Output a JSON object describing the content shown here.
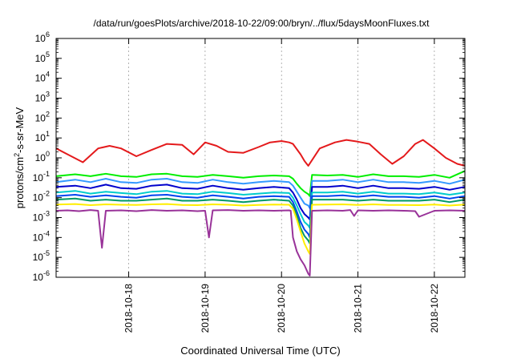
{
  "chart_data": {
    "type": "line",
    "title": "/data/run/goesPlots/archive/2018-10-22/09:00/bryn/../flux/5daysMoonFluxes.txt",
    "xlabel": "Coordinated Universal Time (UTC)",
    "ylabel": "protons/cm²-s-sr-MeV",
    "ylabel_parts": {
      "pre": "protons/cm",
      "sup": "2",
      "post": "-s-sr-MeV"
    },
    "yscale": "log",
    "ylim_exp": [
      -6,
      6
    ],
    "xlim_days": [
      17.05,
      22.4
    ],
    "grid": true,
    "legend": "none",
    "x_ticks": [
      {
        "day": 18,
        "label": "2018-10-18"
      },
      {
        "day": 19,
        "label": "2018-10-19"
      },
      {
        "day": 20,
        "label": "2018-10-20"
      },
      {
        "day": 21,
        "label": "2018-10-21"
      },
      {
        "day": 22,
        "label": "2018-10-22"
      }
    ],
    "y_ticks": [
      {
        "exp": -6,
        "label": "10",
        "sup": "-6"
      },
      {
        "exp": -5,
        "label": "10",
        "sup": "-5"
      },
      {
        "exp": -4,
        "label": "10",
        "sup": "-4"
      },
      {
        "exp": -3,
        "label": "10",
        "sup": "-3"
      },
      {
        "exp": -2,
        "label": "10",
        "sup": "-2"
      },
      {
        "exp": -1,
        "label": "10",
        "sup": "-1"
      },
      {
        "exp": 0,
        "label": "10",
        "sup": "0"
      },
      {
        "exp": 1,
        "label": "10",
        "sup": "1"
      },
      {
        "exp": 2,
        "label": "10",
        "sup": "2"
      },
      {
        "exp": 3,
        "label": "10",
        "sup": "3"
      },
      {
        "exp": 4,
        "label": "10",
        "sup": "4"
      },
      {
        "exp": 5,
        "label": "10",
        "sup": "5"
      },
      {
        "exp": 6,
        "label": "10",
        "sup": "6"
      }
    ],
    "series": [
      {
        "color": "#e41a1c",
        "x": [
          17.05,
          17.2,
          17.4,
          17.6,
          17.75,
          17.9,
          18.1,
          18.3,
          18.5,
          18.7,
          18.85,
          19.0,
          19.15,
          19.3,
          19.5,
          19.7,
          19.85,
          20.0,
          20.1,
          20.15,
          20.25,
          20.3,
          20.35,
          20.5,
          20.7,
          20.85,
          21.0,
          21.15,
          21.3,
          21.45,
          21.6,
          21.75,
          21.85,
          22.0,
          22.15,
          22.3,
          22.4
        ],
        "y": [
          3.0,
          1.5,
          0.6,
          3.0,
          4.0,
          3.0,
          1.2,
          2.5,
          5.0,
          4.5,
          1.5,
          6.0,
          4.0,
          2.0,
          1.8,
          3.5,
          6.0,
          7.0,
          6.0,
          5.0,
          1.5,
          0.7,
          0.4,
          3.0,
          6.0,
          8.0,
          6.5,
          5.0,
          1.5,
          0.5,
          1.2,
          5.0,
          8.0,
          3.0,
          1.0,
          0.5,
          0.4
        ]
      },
      {
        "color": "#00ee00",
        "x": [
          17.05,
          17.3,
          17.5,
          17.7,
          17.9,
          18.1,
          18.3,
          18.5,
          18.7,
          18.9,
          19.1,
          19.3,
          19.5,
          19.7,
          19.9,
          20.1,
          20.15,
          20.2,
          20.25,
          20.3,
          20.35,
          20.37,
          20.4,
          20.6,
          20.8,
          21.0,
          21.2,
          21.4,
          21.6,
          21.8,
          22.0,
          22.2,
          22.4
        ],
        "y": [
          0.12,
          0.15,
          0.12,
          0.16,
          0.12,
          0.11,
          0.15,
          0.16,
          0.12,
          0.11,
          0.14,
          0.12,
          0.1,
          0.12,
          0.13,
          0.12,
          0.09,
          0.05,
          0.03,
          0.02,
          0.015,
          0.012,
          0.14,
          0.13,
          0.14,
          0.11,
          0.15,
          0.12,
          0.12,
          0.11,
          0.14,
          0.1,
          0.22
        ]
      },
      {
        "color": "#3399ff",
        "x": [
          17.05,
          17.3,
          17.5,
          17.7,
          17.9,
          18.1,
          18.3,
          18.5,
          18.7,
          18.9,
          19.1,
          19.3,
          19.5,
          19.7,
          19.9,
          20.1,
          20.15,
          20.2,
          20.25,
          20.3,
          20.35,
          20.37,
          20.4,
          20.6,
          20.8,
          21.0,
          21.2,
          21.4,
          21.6,
          21.8,
          22.0,
          22.2,
          22.4
        ],
        "y": [
          0.06,
          0.08,
          0.06,
          0.09,
          0.06,
          0.055,
          0.08,
          0.09,
          0.06,
          0.055,
          0.08,
          0.06,
          0.05,
          0.06,
          0.07,
          0.06,
          0.04,
          0.02,
          0.01,
          0.005,
          0.004,
          0.003,
          0.07,
          0.07,
          0.08,
          0.06,
          0.08,
          0.06,
          0.06,
          0.055,
          0.07,
          0.05,
          0.08
        ]
      },
      {
        "color": "#0000cc",
        "x": [
          17.05,
          17.3,
          17.5,
          17.7,
          17.9,
          18.1,
          18.3,
          18.5,
          18.7,
          18.9,
          19.1,
          19.3,
          19.5,
          19.7,
          19.9,
          20.1,
          20.15,
          20.2,
          20.25,
          20.3,
          20.35,
          20.37,
          20.4,
          20.6,
          20.8,
          21.0,
          21.2,
          21.4,
          21.6,
          21.8,
          22.0,
          22.2,
          22.4
        ],
        "y": [
          0.035,
          0.04,
          0.03,
          0.045,
          0.03,
          0.028,
          0.04,
          0.045,
          0.03,
          0.028,
          0.04,
          0.03,
          0.025,
          0.03,
          0.035,
          0.03,
          0.018,
          0.008,
          0.003,
          0.0015,
          0.001,
          0.0008,
          0.035,
          0.035,
          0.04,
          0.03,
          0.04,
          0.03,
          0.03,
          0.028,
          0.035,
          0.025,
          0.035
        ]
      },
      {
        "color": "#00cccc",
        "x": [
          17.05,
          17.3,
          17.5,
          17.7,
          17.9,
          18.1,
          18.3,
          18.5,
          18.7,
          18.9,
          19.1,
          19.3,
          19.5,
          19.7,
          19.9,
          20.1,
          20.15,
          20.2,
          20.25,
          20.3,
          20.35,
          20.37,
          20.4,
          20.6,
          20.8,
          21.0,
          21.2,
          21.4,
          21.6,
          21.8,
          22.0,
          22.2,
          22.4
        ],
        "y": [
          0.018,
          0.022,
          0.016,
          0.02,
          0.017,
          0.015,
          0.02,
          0.022,
          0.016,
          0.015,
          0.02,
          0.017,
          0.014,
          0.016,
          0.018,
          0.017,
          0.01,
          0.004,
          0.0015,
          0.0006,
          0.0004,
          0.0003,
          0.018,
          0.018,
          0.02,
          0.016,
          0.02,
          0.016,
          0.016,
          0.015,
          0.018,
          0.014,
          0.018
        ]
      },
      {
        "color": "#0044ee",
        "x": [
          17.05,
          17.3,
          17.5,
          17.7,
          17.9,
          18.1,
          18.3,
          18.5,
          18.7,
          18.9,
          19.1,
          19.3,
          19.5,
          19.7,
          19.9,
          20.1,
          20.15,
          20.2,
          20.25,
          20.3,
          20.35,
          20.37,
          20.4,
          20.6,
          20.8,
          21.0,
          21.2,
          21.4,
          21.6,
          21.8,
          22.0,
          22.2,
          22.4
        ],
        "y": [
          0.012,
          0.014,
          0.011,
          0.013,
          0.011,
          0.01,
          0.013,
          0.014,
          0.011,
          0.01,
          0.013,
          0.011,
          0.009,
          0.011,
          0.012,
          0.011,
          0.006,
          0.002,
          0.0006,
          0.00025,
          0.00015,
          0.0001,
          0.012,
          0.012,
          0.013,
          0.011,
          0.013,
          0.011,
          0.011,
          0.01,
          0.012,
          0.009,
          0.012
        ]
      },
      {
        "color": "#009966",
        "x": [
          17.05,
          17.3,
          17.5,
          17.7,
          17.9,
          18.1,
          18.3,
          18.5,
          18.7,
          18.9,
          19.1,
          19.3,
          19.5,
          19.7,
          19.9,
          20.1,
          20.15,
          20.2,
          20.25,
          20.3,
          20.35,
          20.37,
          20.4,
          20.6,
          20.8,
          21.0,
          21.2,
          21.4,
          21.6,
          21.8,
          22.0,
          22.2,
          22.4
        ],
        "y": [
          0.008,
          0.009,
          0.007,
          0.008,
          0.007,
          0.007,
          0.008,
          0.009,
          0.007,
          0.007,
          0.008,
          0.007,
          0.006,
          0.007,
          0.008,
          0.007,
          0.004,
          0.0013,
          0.0003,
          0.00012,
          7e-05,
          5e-05,
          0.008,
          0.008,
          0.008,
          0.007,
          0.008,
          0.007,
          0.007,
          0.007,
          0.008,
          0.006,
          0.008
        ]
      },
      {
        "color": "#ffee00",
        "x": [
          17.05,
          17.3,
          17.5,
          17.7,
          17.9,
          18.1,
          18.3,
          18.5,
          18.7,
          18.9,
          19.1,
          19.3,
          19.5,
          19.7,
          19.9,
          20.1,
          20.15,
          20.2,
          20.25,
          20.3,
          20.35,
          20.37,
          20.4,
          20.6,
          20.8,
          21.0,
          21.2,
          21.4,
          21.6,
          21.8,
          22.0,
          22.2,
          22.4
        ],
        "y": [
          0.0045,
          0.0048,
          0.0042,
          0.0046,
          0.0044,
          0.0043,
          0.0046,
          0.0048,
          0.0043,
          0.0042,
          0.0046,
          0.0044,
          0.004,
          0.0043,
          0.0045,
          0.0044,
          0.0028,
          0.0008,
          0.0002,
          5e-05,
          2e-05,
          1.5e-05,
          0.0044,
          0.0045,
          0.0046,
          0.0043,
          0.0046,
          0.0043,
          0.0043,
          0.0042,
          0.0045,
          0.004,
          0.0045
        ]
      },
      {
        "color": "#993399",
        "x": [
          17.05,
          17.2,
          17.35,
          17.5,
          17.6,
          17.65,
          17.7,
          17.9,
          18.1,
          18.3,
          18.5,
          18.7,
          18.9,
          19.0,
          19.05,
          19.1,
          19.3,
          19.5,
          19.7,
          19.9,
          20.1,
          20.12,
          20.15,
          20.2,
          20.25,
          20.3,
          20.35,
          20.37,
          20.4,
          20.6,
          20.8,
          20.9,
          20.95,
          21.0,
          21.2,
          21.4,
          21.6,
          21.75,
          21.8,
          22.0,
          22.2,
          22.4
        ],
        "y": [
          0.0022,
          0.0023,
          0.0021,
          0.0024,
          0.0022,
          3e-05,
          0.0022,
          0.0023,
          0.0021,
          0.0024,
          0.0022,
          0.0023,
          0.0021,
          0.0022,
          0.0001,
          0.0023,
          0.0024,
          0.0022,
          0.0023,
          0.0022,
          0.0023,
          0.0022,
          0.0001,
          2e-05,
          8e-06,
          4e-06,
          1.5e-06,
          1.2e-06,
          0.0022,
          0.0023,
          0.0022,
          0.0024,
          0.0012,
          0.0023,
          0.0022,
          0.0023,
          0.0022,
          0.0021,
          0.0011,
          0.0022,
          0.0023,
          0.0022
        ]
      }
    ]
  }
}
